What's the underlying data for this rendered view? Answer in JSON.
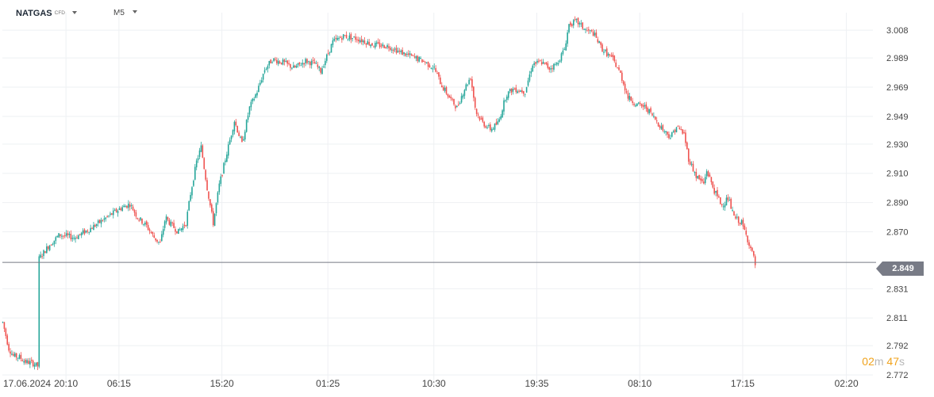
{
  "toolbar": {
    "symbol": "NATGAS",
    "symbol_type": "CFD",
    "timeframe": "M5"
  },
  "countdown": {
    "minutes": "02",
    "minutes_unit": "m",
    "seconds": "47",
    "seconds_unit": "s"
  },
  "colors": {
    "up": "#26a69a",
    "down": "#ef5350",
    "grid": "#eef0f3",
    "axis_text": "#444444",
    "last_line": "#787b86",
    "countdown": "#f0a31c"
  },
  "chart_data": {
    "type": "candlestick",
    "instrument": "NATGAS",
    "timeframe": "M5",
    "y_ticks": [
      3.008,
      2.989,
      2.969,
      2.949,
      2.93,
      2.91,
      2.89,
      2.87,
      2.849,
      2.831,
      2.811,
      2.792,
      2.772
    ],
    "y_range": [
      2.765,
      3.02
    ],
    "last_price": 2.849,
    "last_price_label": "2.849",
    "x_labels": [
      "17.06.2024",
      "20:10",
      "06:15",
      "15:20",
      "01:25",
      "10:30",
      "19:35",
      "08:10",
      "17:15",
      "02:20"
    ],
    "x_index_range": [
      0,
      1150
    ],
    "x_label_index": [
      0,
      84,
      154,
      290,
      430,
      570,
      706,
      842,
      978,
      1115
    ],
    "grid": true,
    "price_path": [
      [
        0,
        2.808
      ],
      [
        8,
        2.79
      ],
      [
        14,
        2.785
      ],
      [
        22,
        2.784
      ],
      [
        30,
        2.781
      ],
      [
        40,
        2.78
      ],
      [
        46,
        2.778
      ],
      [
        47,
        2.851
      ],
      [
        60,
        2.86
      ],
      [
        75,
        2.868
      ],
      [
        95,
        2.866
      ],
      [
        115,
        2.872
      ],
      [
        135,
        2.879
      ],
      [
        155,
        2.886
      ],
      [
        168,
        2.889
      ],
      [
        178,
        2.88
      ],
      [
        190,
        2.874
      ],
      [
        200,
        2.866
      ],
      [
        208,
        2.862
      ],
      [
        215,
        2.88
      ],
      [
        222,
        2.875
      ],
      [
        232,
        2.87
      ],
      [
        242,
        2.876
      ],
      [
        248,
        2.896
      ],
      [
        256,
        2.918
      ],
      [
        262,
        2.928
      ],
      [
        270,
        2.9
      ],
      [
        278,
        2.876
      ],
      [
        286,
        2.902
      ],
      [
        296,
        2.924
      ],
      [
        306,
        2.946
      ],
      [
        316,
        2.93
      ],
      [
        326,
        2.955
      ],
      [
        336,
        2.966
      ],
      [
        346,
        2.981
      ],
      [
        356,
        2.988
      ],
      [
        370,
        2.986
      ],
      [
        385,
        2.982
      ],
      [
        400,
        2.987
      ],
      [
        412,
        2.985
      ],
      [
        420,
        2.98
      ],
      [
        428,
        2.99
      ],
      [
        436,
        3.0
      ],
      [
        450,
        3.004
      ],
      [
        470,
        3.002
      ],
      [
        490,
        2.998
      ],
      [
        510,
        2.997
      ],
      [
        525,
        2.993
      ],
      [
        540,
        2.99
      ],
      [
        555,
        2.987
      ],
      [
        570,
        2.982
      ],
      [
        580,
        2.97
      ],
      [
        590,
        2.962
      ],
      [
        600,
        2.955
      ],
      [
        610,
        2.968
      ],
      [
        618,
        2.976
      ],
      [
        625,
        2.952
      ],
      [
        635,
        2.944
      ],
      [
        645,
        2.94
      ],
      [
        655,
        2.945
      ],
      [
        665,
        2.964
      ],
      [
        675,
        2.968
      ],
      [
        690,
        2.966
      ],
      [
        700,
        2.985
      ],
      [
        712,
        2.986
      ],
      [
        722,
        2.982
      ],
      [
        732,
        2.985
      ],
      [
        742,
        2.995
      ],
      [
        748,
        3.012
      ],
      [
        758,
        3.014
      ],
      [
        770,
        3.008
      ],
      [
        780,
        3.006
      ],
      [
        792,
        2.995
      ],
      [
        806,
        2.988
      ],
      [
        816,
        2.978
      ],
      [
        826,
        2.962
      ],
      [
        838,
        2.957
      ],
      [
        850,
        2.955
      ],
      [
        862,
        2.947
      ],
      [
        872,
        2.94
      ],
      [
        882,
        2.935
      ],
      [
        890,
        2.942
      ],
      [
        900,
        2.937
      ],
      [
        906,
        2.92
      ],
      [
        916,
        2.908
      ],
      [
        926,
        2.903
      ],
      [
        930,
        2.912
      ],
      [
        940,
        2.898
      ],
      [
        950,
        2.888
      ],
      [
        958,
        2.893
      ],
      [
        966,
        2.88
      ],
      [
        976,
        2.876
      ],
      [
        986,
        2.862
      ],
      [
        992,
        2.852
      ],
      [
        995,
        2.845
      ]
    ]
  }
}
